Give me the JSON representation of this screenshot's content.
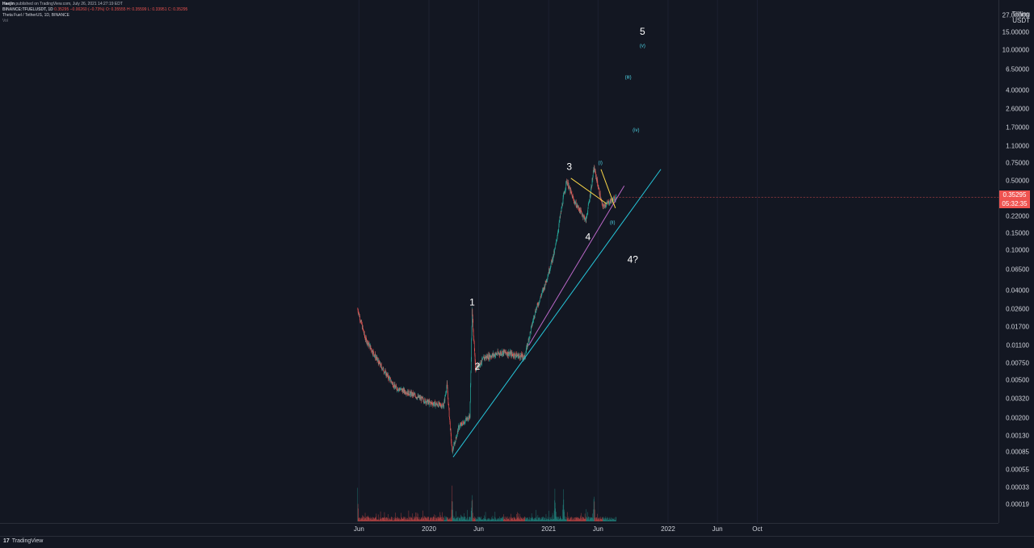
{
  "header": {
    "author": "Haejin",
    "published": "published on TradingView.com, July 26, 2021 14:27:19 EDT",
    "symbol_line": "BINANCE:TFUELUSDT, 1D",
    "last": "0.35295",
    "change": "−0.00260 (−0.73%)",
    "open": "O: 0.35555",
    "high": "H: 0.35599",
    "low": "L: 0.33951",
    "close": "C: 0.35295",
    "chart_title": "Theta Fuel / TetherUS, 1D, BINANCE",
    "vol_label": "Vol"
  },
  "axis": {
    "currency_line1": "Tiilling",
    "currency_line2": "USDT",
    "price_tag": "0.35295",
    "countdown": "05:32:35"
  },
  "footer": {
    "brand": "TradingView"
  },
  "colors": {
    "up": "#26a69a",
    "down": "#ef5350",
    "trendline": "#26c6da",
    "channel": "#ba68c8",
    "wedge": "#f9d648",
    "background": "#131722"
  },
  "chart_data": {
    "type": "candlestick",
    "title": "Theta Fuel / TetherUS, 1D, BINANCE",
    "y_scale": "log",
    "y_tick_labels": [
      "27.00000",
      "15.00000",
      "10.00000",
      "6.50000",
      "4.00000",
      "2.60000",
      "1.70000",
      "1.10000",
      "0.75000",
      "0.50000",
      "0.35000",
      "0.22000",
      "0.15000",
      "0.10000",
      "0.06500",
      "0.04000",
      "0.02600",
      "0.01700",
      "0.01100",
      "0.00750",
      "0.00500",
      "0.00320",
      "0.00200",
      "0.00130",
      "0.00085",
      "0.00055",
      "0.00033",
      "0.00019"
    ],
    "x_tick_labels": [
      "Jun",
      "2020",
      "Jun",
      "2021",
      "Jun",
      "2022",
      "Jun",
      "Oct"
    ],
    "last_price": 0.35295,
    "price_path": [
      {
        "date": "2019-05-28",
        "price": 0.026
      },
      {
        "date": "2019-06-20",
        "price": 0.013
      },
      {
        "date": "2019-08-01",
        "price": 0.0075
      },
      {
        "date": "2019-09-20",
        "price": 0.0042
      },
      {
        "date": "2019-11-15",
        "price": 0.0035
      },
      {
        "date": "2020-01-01",
        "price": 0.0029
      },
      {
        "date": "2020-02-15",
        "price": 0.0027
      },
      {
        "date": "2020-02-25",
        "price": 0.0045
      },
      {
        "date": "2020-03-12",
        "price": 0.00085
      },
      {
        "date": "2020-04-01",
        "price": 0.0016
      },
      {
        "date": "2020-05-05",
        "price": 0.0021
      },
      {
        "date": "2020-05-12",
        "price": 0.025
      },
      {
        "date": "2020-05-22",
        "price": 0.0065
      },
      {
        "date": "2020-06-20",
        "price": 0.0085
      },
      {
        "date": "2020-08-15",
        "price": 0.0095
      },
      {
        "date": "2020-10-20",
        "price": 0.0085
      },
      {
        "date": "2020-11-20",
        "price": 0.024
      },
      {
        "date": "2020-12-20",
        "price": 0.045
      },
      {
        "date": "2021-01-20",
        "price": 0.1
      },
      {
        "date": "2021-02-15",
        "price": 0.35
      },
      {
        "date": "2021-02-25",
        "price": 0.5
      },
      {
        "date": "2021-03-20",
        "price": 0.32
      },
      {
        "date": "2021-04-25",
        "price": 0.2
      },
      {
        "date": "2021-05-20",
        "price": 0.67
      },
      {
        "date": "2021-06-15",
        "price": 0.28
      },
      {
        "date": "2021-07-26",
        "price": 0.35295
      }
    ],
    "volume_spikes": [
      "2019-05-28",
      "2020-03-12",
      "2020-05-12",
      "2021-01-20",
      "2021-02-15",
      "2021-05-20"
    ],
    "annotations": [
      {
        "text": "1",
        "date": "2020-05-12",
        "price": 0.03
      },
      {
        "text": "2",
        "date": "2020-05-28",
        "price": 0.0068
      },
      {
        "text": "3",
        "date": "2021-03-05",
        "price": 0.68
      },
      {
        "text": "4",
        "date": "2021-05-01",
        "price": 0.135
      },
      {
        "text": "4?",
        "date": "2021-09-15",
        "price": 0.08
      },
      {
        "text": "5",
        "date": "2021-10-15",
        "price": 15
      },
      {
        "text": "(i)",
        "date": "2021-06-08",
        "price": 0.75
      },
      {
        "text": "(ii)",
        "date": "2021-07-15",
        "price": 0.19
      },
      {
        "text": "(iii)",
        "date": "2021-09-01",
        "price": 5.4
      },
      {
        "text": "(iv)",
        "date": "2021-09-25",
        "price": 1.6
      },
      {
        "text": "(v)",
        "date": "2021-10-15",
        "price": 11
      }
    ],
    "trendlines": [
      {
        "name": "support",
        "from": {
          "date": "2020-03-15",
          "price": 0.00075
        },
        "to": {
          "date": "2021-12-10",
          "price": 0.65
        }
      },
      {
        "name": "channel",
        "from": {
          "date": "2020-11-01",
          "price": 0.011
        },
        "to": {
          "date": "2021-08-20",
          "price": 0.45
        }
      },
      {
        "name": "wedge-top",
        "from": {
          "date": "2021-03-10",
          "price": 0.53
        },
        "to": {
          "date": "2021-06-28",
          "price": 0.3
        }
      },
      {
        "name": "wedge-right",
        "from": {
          "date": "2021-06-10",
          "price": 0.65
        },
        "to": {
          "date": "2021-07-24",
          "price": 0.27
        }
      }
    ]
  }
}
